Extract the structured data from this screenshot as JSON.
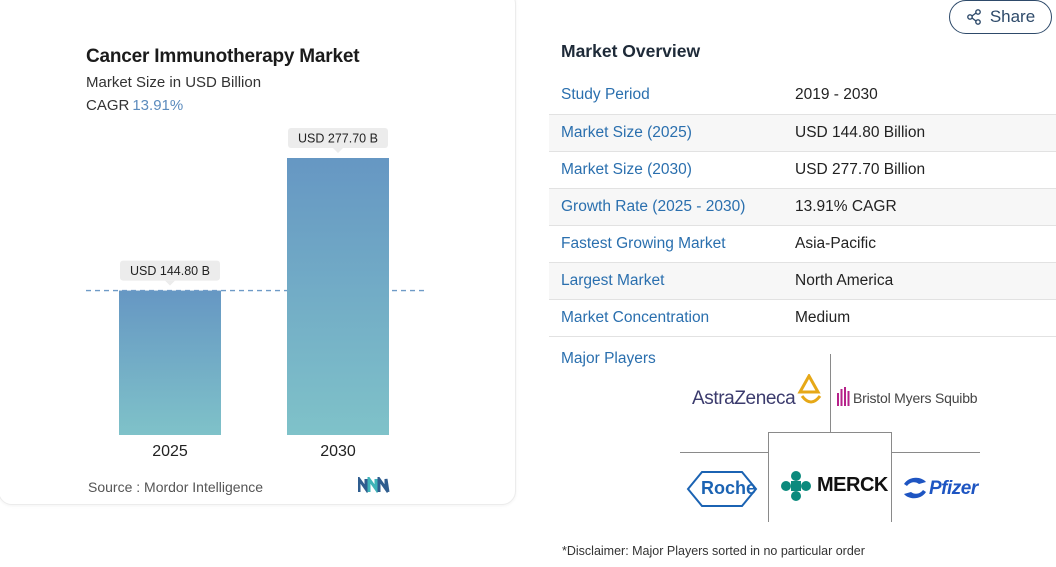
{
  "chart_data": {
    "type": "bar",
    "title": "Cancer Immunotherapy Market",
    "subtitle": "Market Size in USD Billion",
    "cagr_label": "CAGR",
    "cagr_value": "13.91%",
    "categories": [
      "2025",
      "2030"
    ],
    "values": [
      144.8,
      277.7
    ],
    "data_labels": [
      "USD 144.80 B",
      "USD 277.70 B"
    ],
    "ylim": [
      0,
      277.7
    ],
    "grid": false,
    "reference_line": "dashed line at 2025 value",
    "bar_colors": [
      "#6697c3",
      "#7fc2c9"
    ],
    "source": "Source :  Mordor Intelligence"
  },
  "header": {
    "share_label": "Share",
    "share_icon": "share-icon"
  },
  "overview": {
    "title": "Market Overview",
    "rows": [
      {
        "label": "Study Period",
        "value": "2019 - 2030"
      },
      {
        "label": "Market Size (2025)",
        "value": "USD 144.80 Billion"
      },
      {
        "label": "Market Size (2030)",
        "value": "USD 277.70 Billion"
      },
      {
        "label": "Growth Rate (2025 - 2030)",
        "value": "13.91% CAGR"
      },
      {
        "label": "Fastest Growing Market",
        "value": "Asia-Pacific"
      },
      {
        "label": "Largest Market",
        "value": "North America"
      },
      {
        "label": "Market Concentration",
        "value": "Medium"
      }
    ]
  },
  "players": {
    "label": "Major Players",
    "logos": [
      "AstraZeneca",
      "Bristol Myers Squibb",
      "Roche",
      "MERCK",
      "Pfizer"
    ]
  },
  "disclaimer": "*Disclaimer: Major Players sorted in no particular order",
  "colors": {
    "accent_blue": "#2a6fae",
    "bar_top": "#6697c3",
    "bar_bottom": "#7fc2c9"
  }
}
